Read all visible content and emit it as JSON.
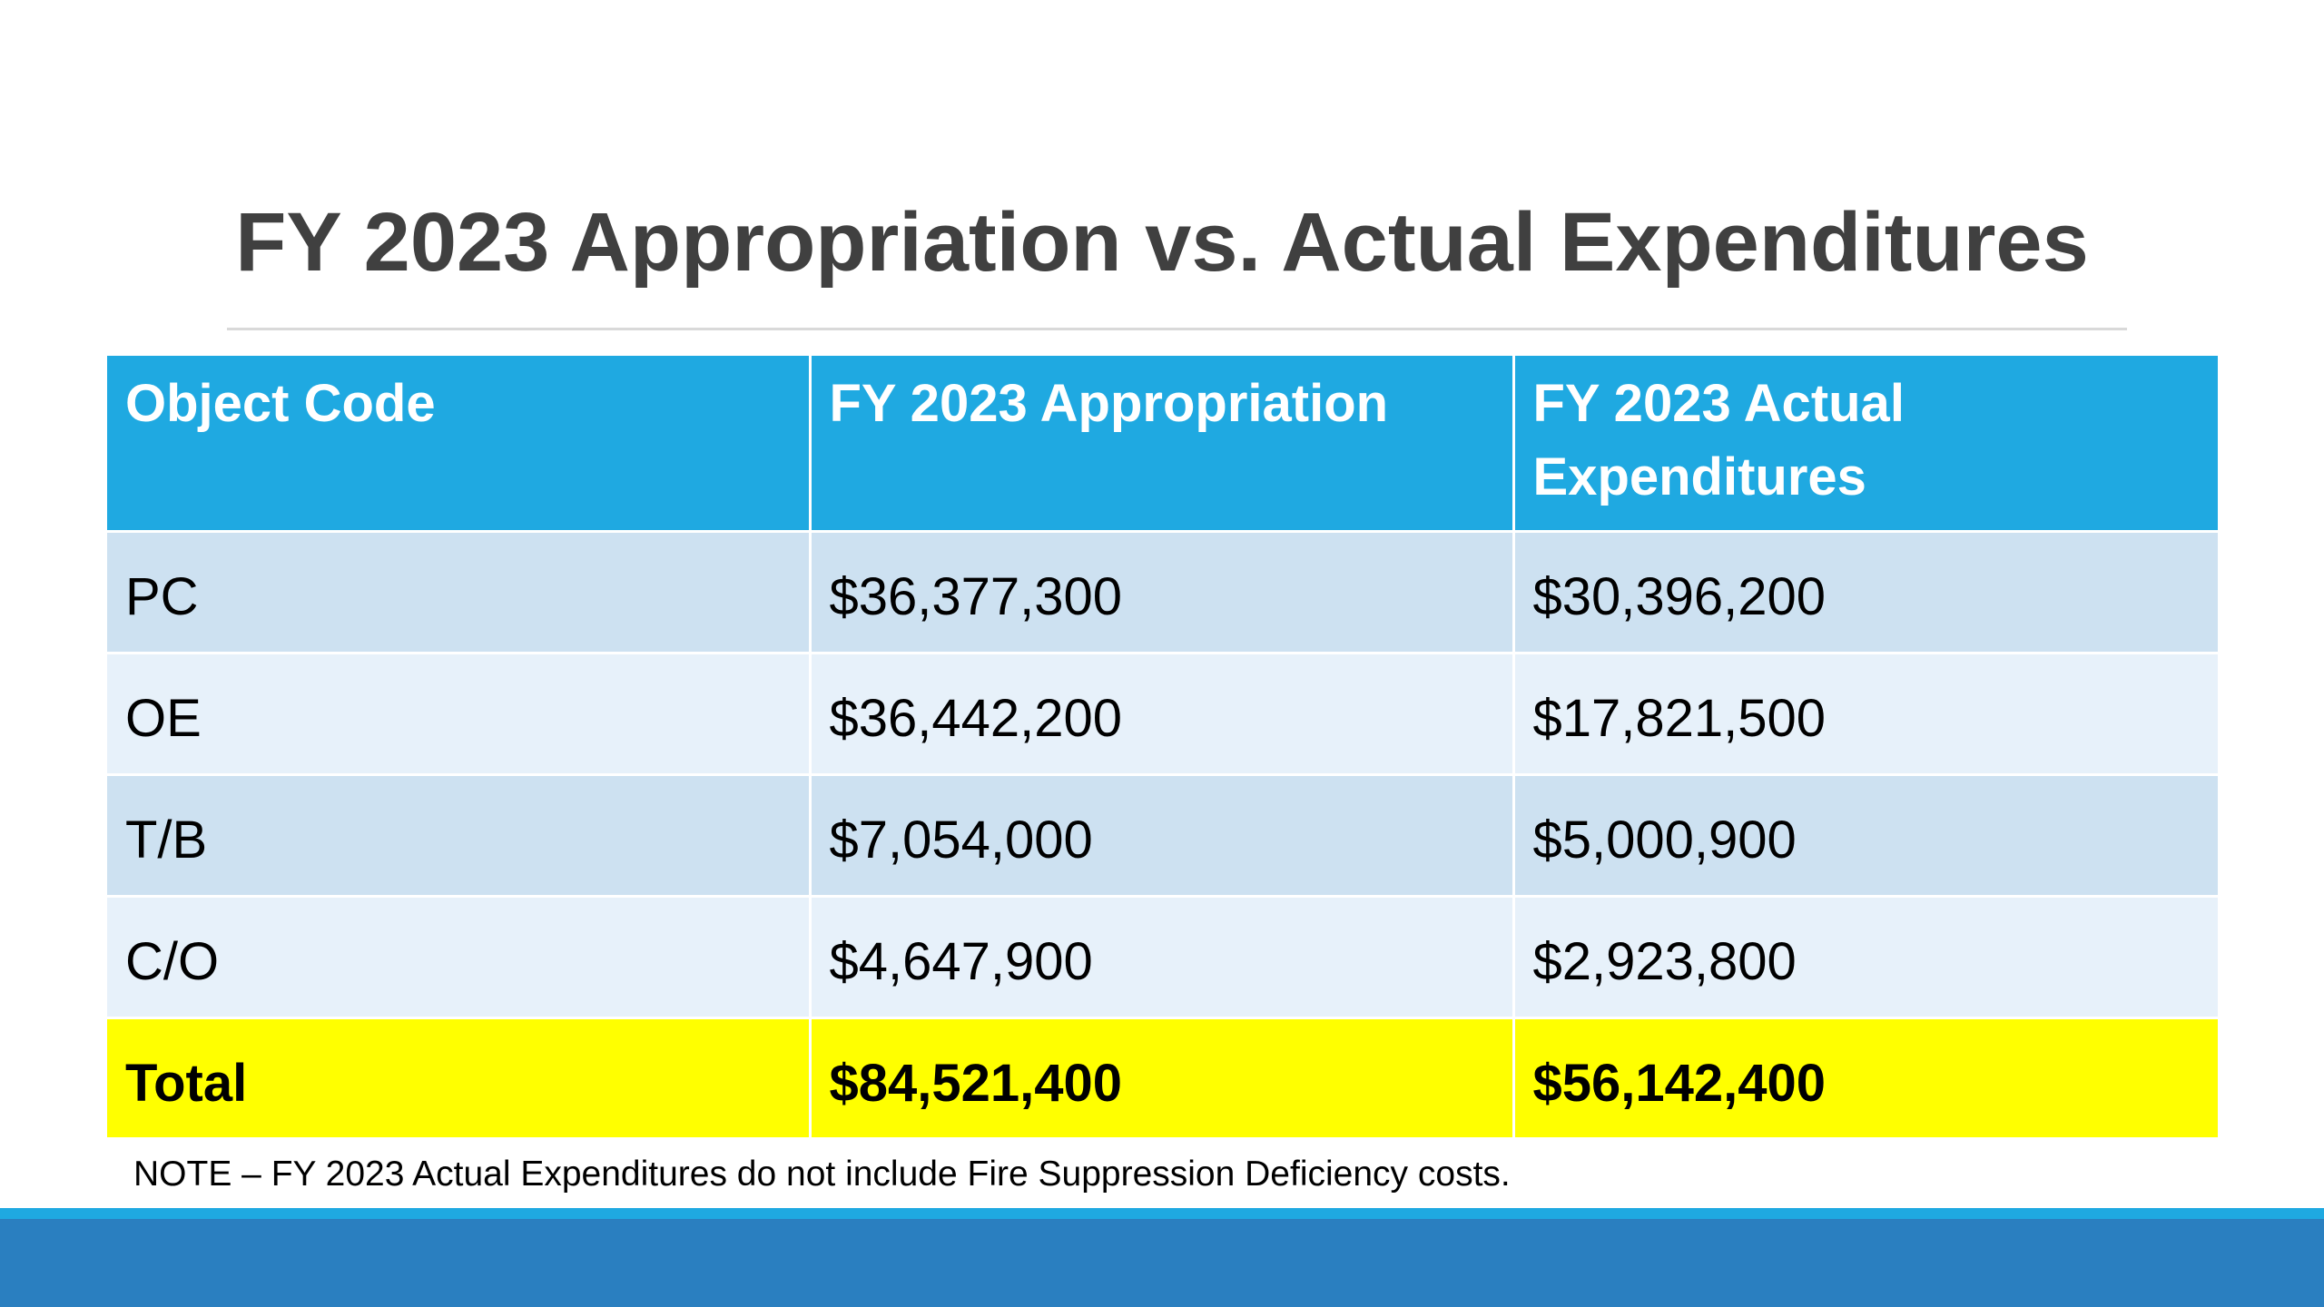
{
  "title": "FY 2023 Appropriation vs. Actual Expenditures",
  "table": {
    "header": [
      "Object Code",
      "FY 2023 Appropriation",
      "FY 2023 Actual Expenditures"
    ],
    "rows": [
      [
        "PC",
        "$36,377,300",
        "$30,396,200"
      ],
      [
        "OE",
        "$36,442,200",
        "$17,821,500"
      ],
      [
        "T/B",
        "$7,054,000",
        "$5,000,900"
      ],
      [
        "C/O",
        "$4,647,900",
        "$2,923,800"
      ]
    ],
    "total": [
      "Total",
      "$84,521,400",
      "$56,142,400"
    ]
  },
  "note": "NOTE – FY 2023 Actual Expenditures do not include Fire Suppression Deficiency costs."
}
